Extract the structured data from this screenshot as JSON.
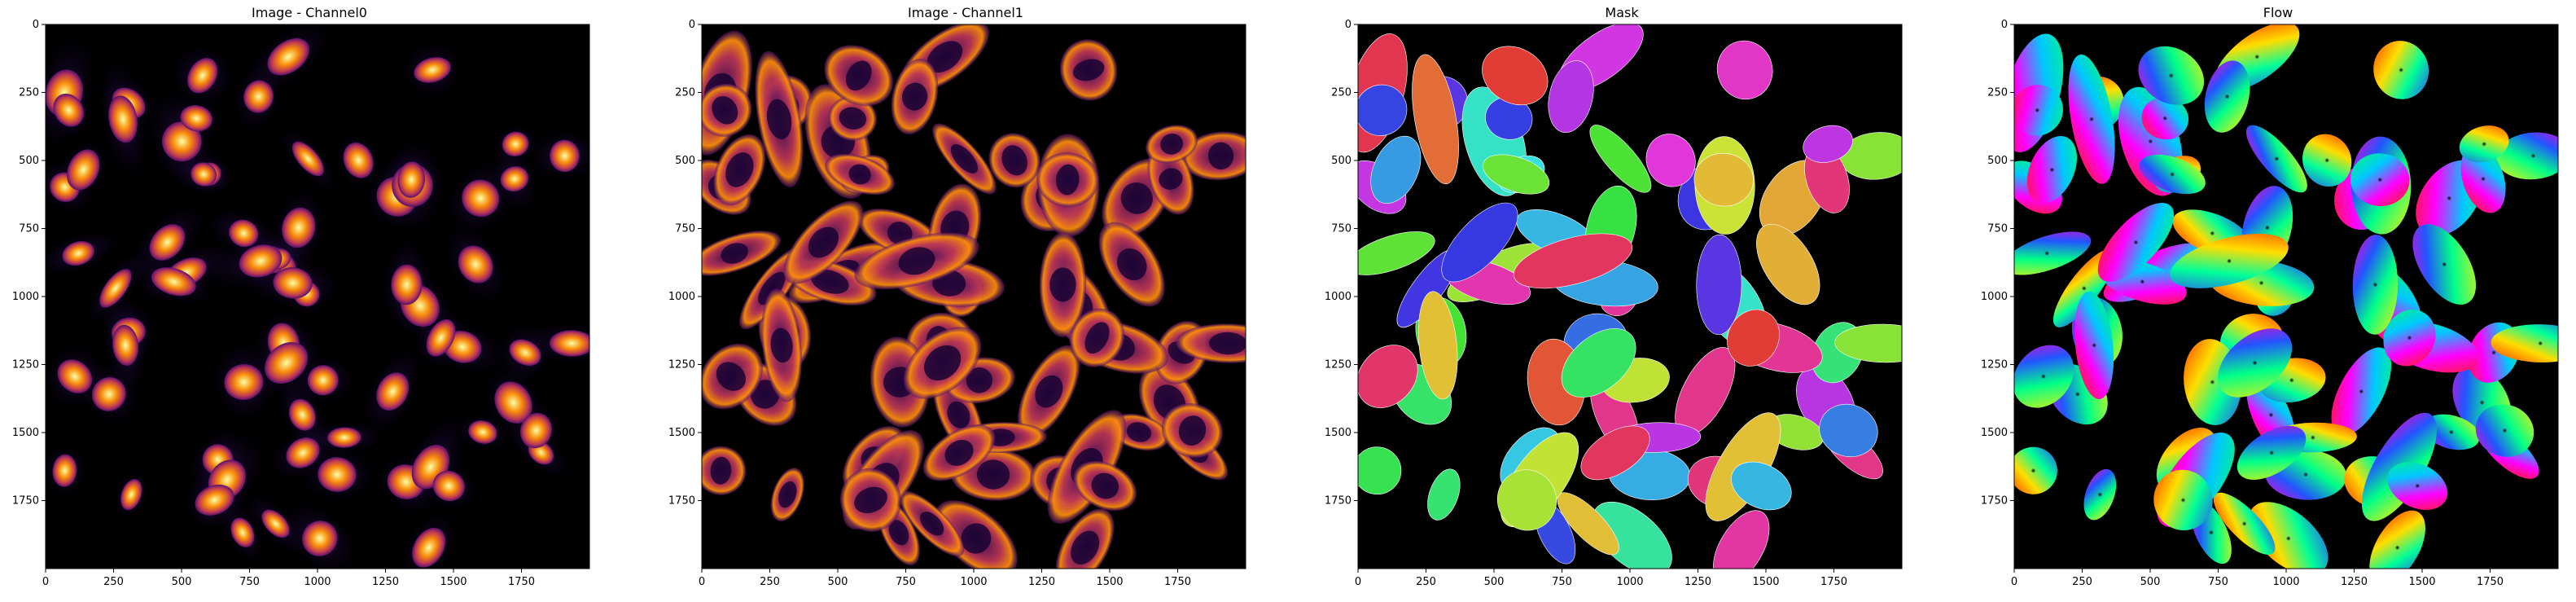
{
  "panels": [
    {
      "id": "channel0",
      "title": "Image - Channel0"
    },
    {
      "id": "channel1",
      "title": "Image - Channel1"
    },
    {
      "id": "mask",
      "title": "Mask"
    },
    {
      "id": "flow",
      "title": "Flow"
    }
  ],
  "axes": {
    "x_ticks": [
      "0",
      "250",
      "500",
      "750",
      "1000",
      "1250",
      "1500",
      "1750"
    ],
    "y_ticks": [
      "0",
      "250",
      "500",
      "750",
      "1000",
      "1250",
      "1500",
      "1750"
    ],
    "x_values": [
      0,
      250,
      500,
      750,
      1000,
      1250,
      1500,
      1750
    ],
    "y_values": [
      0,
      250,
      500,
      750,
      1000,
      1250,
      1500,
      1750
    ],
    "range": [
      0,
      2000
    ]
  },
  "colors": {
    "background_dark": "#000000",
    "inferno_hot": "#fcffa4",
    "inferno_orange": "#f98c0a",
    "inferno_red": "#bc3754",
    "inferno_purple": "#57106e"
  }
}
